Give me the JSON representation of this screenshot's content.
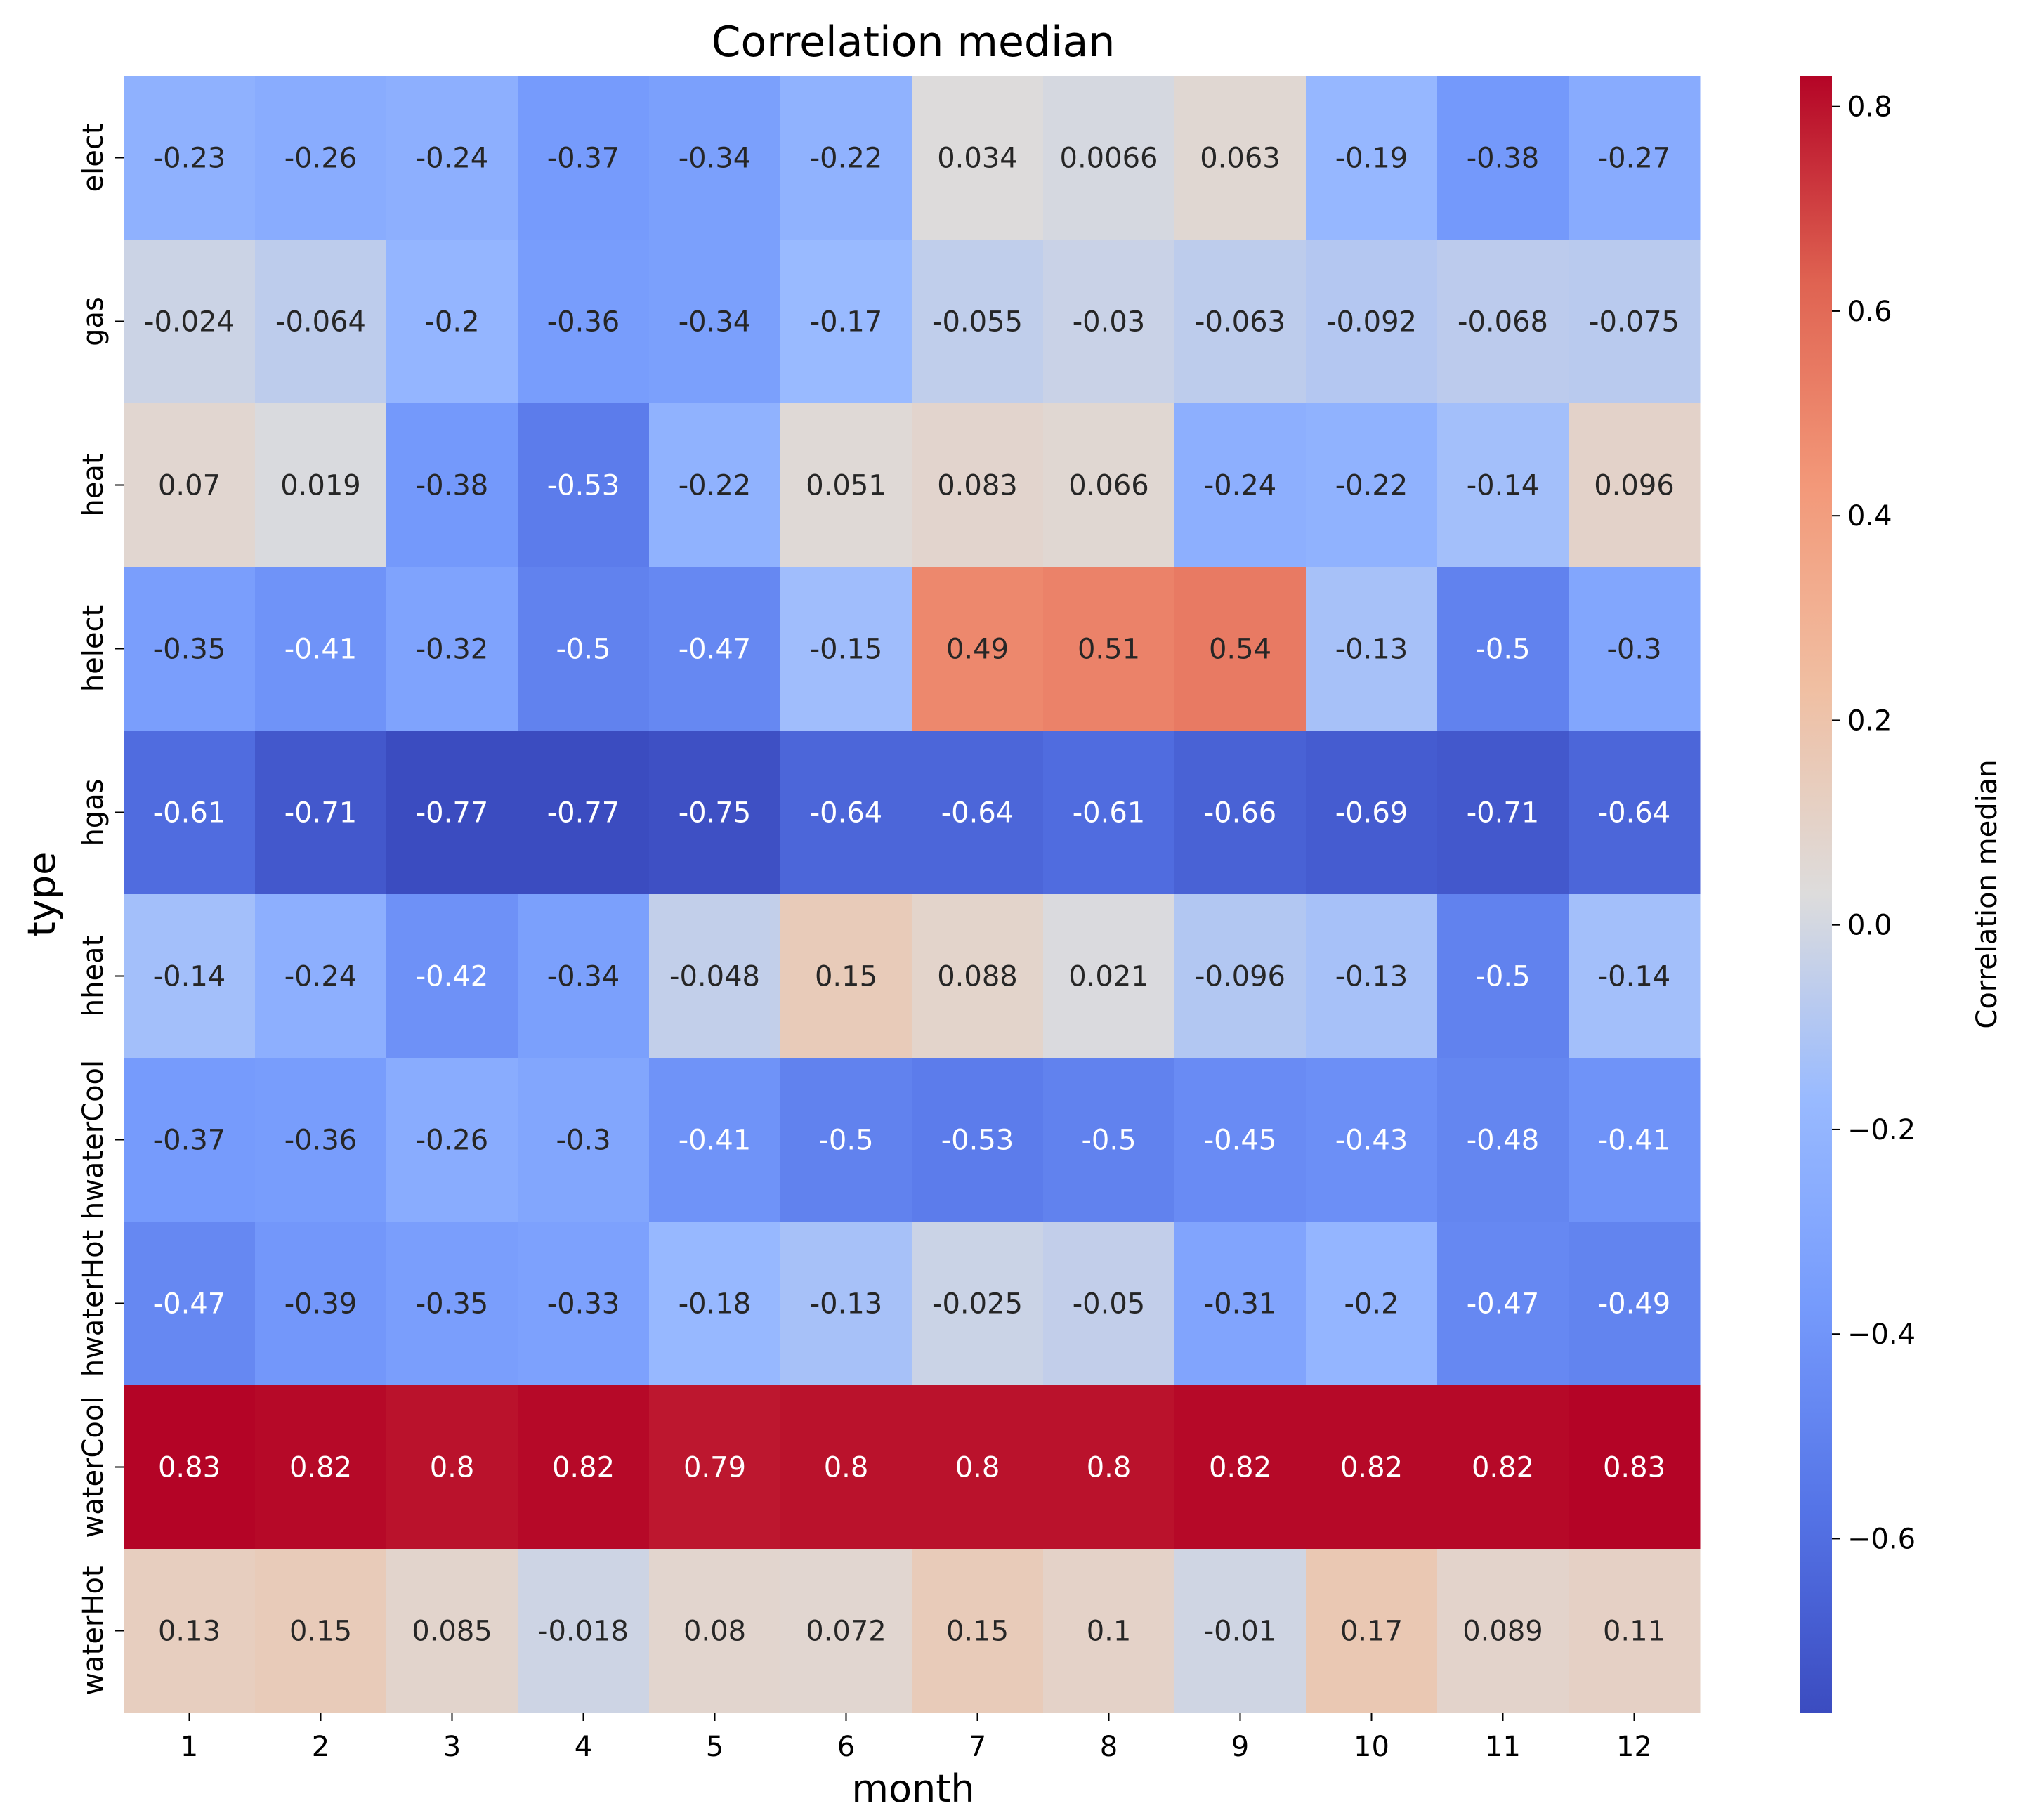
{
  "chart_data": {
    "type": "heatmap",
    "title": "Correlation median",
    "xlabel": "month",
    "ylabel": "type",
    "colorbar_label": "Correlation median",
    "colormap": "coolwarm",
    "vmin": -0.77,
    "vmax": 0.83,
    "colorbar_ticks": [
      "0.8",
      "0.6",
      "0.4",
      "0.2",
      "0.0",
      "−0.2",
      "−0.4",
      "−0.6"
    ],
    "colorbar_tick_values": [
      0.8,
      0.6,
      0.4,
      0.2,
      0.0,
      -0.2,
      -0.4,
      -0.6
    ],
    "x_categories": [
      "1",
      "2",
      "3",
      "4",
      "5",
      "6",
      "7",
      "8",
      "9",
      "10",
      "11",
      "12"
    ],
    "y_categories": [
      "elect",
      "gas",
      "heat",
      "helect",
      "hgas",
      "hheat",
      "hwaterCool",
      "hwaterHot",
      "waterCool",
      "waterHot"
    ],
    "values": [
      [
        -0.23,
        -0.26,
        -0.24,
        -0.37,
        -0.34,
        -0.22,
        0.034,
        0.0066,
        0.063,
        -0.19,
        -0.38,
        -0.27
      ],
      [
        -0.024,
        -0.064,
        -0.2,
        -0.36,
        -0.34,
        -0.17,
        -0.055,
        -0.03,
        -0.063,
        -0.092,
        -0.068,
        -0.075
      ],
      [
        0.07,
        0.019,
        -0.38,
        -0.53,
        -0.22,
        0.051,
        0.083,
        0.066,
        -0.24,
        -0.22,
        -0.14,
        0.096
      ],
      [
        -0.35,
        -0.41,
        -0.32,
        -0.5,
        -0.47,
        -0.15,
        0.49,
        0.51,
        0.54,
        -0.13,
        -0.5,
        -0.3
      ],
      [
        -0.61,
        -0.71,
        -0.77,
        -0.77,
        -0.75,
        -0.64,
        -0.64,
        -0.61,
        -0.66,
        -0.69,
        -0.71,
        -0.64
      ],
      [
        -0.14,
        -0.24,
        -0.42,
        -0.34,
        -0.048,
        0.15,
        0.088,
        0.021,
        -0.096,
        -0.13,
        -0.5,
        -0.14
      ],
      [
        -0.37,
        -0.36,
        -0.26,
        -0.3,
        -0.41,
        -0.5,
        -0.53,
        -0.5,
        -0.45,
        -0.43,
        -0.48,
        -0.41
      ],
      [
        -0.47,
        -0.39,
        -0.35,
        -0.33,
        -0.18,
        -0.13,
        -0.025,
        -0.05,
        -0.31,
        -0.2,
        -0.47,
        -0.49
      ],
      [
        0.83,
        0.82,
        0.8,
        0.82,
        0.79,
        0.8,
        0.8,
        0.8,
        0.82,
        0.82,
        0.82,
        0.83
      ],
      [
        0.13,
        0.15,
        0.085,
        -0.018,
        0.08,
        0.072,
        0.15,
        0.1,
        -0.01,
        0.17,
        0.089,
        0.11
      ]
    ],
    "cell_labels": [
      [
        "-0.23",
        "-0.26",
        "-0.24",
        "-0.37",
        "-0.34",
        "-0.22",
        "0.034",
        "0.0066",
        "0.063",
        "-0.19",
        "-0.38",
        "-0.27"
      ],
      [
        "-0.024",
        "-0.064",
        "-0.2",
        "-0.36",
        "-0.34",
        "-0.17",
        "-0.055",
        "-0.03",
        "-0.063",
        "-0.092",
        "-0.068",
        "-0.075"
      ],
      [
        "0.07",
        "0.019",
        "-0.38",
        "-0.53",
        "-0.22",
        "0.051",
        "0.083",
        "0.066",
        "-0.24",
        "-0.22",
        "-0.14",
        "0.096"
      ],
      [
        "-0.35",
        "-0.41",
        "-0.32",
        "-0.5",
        "-0.47",
        "-0.15",
        "0.49",
        "0.51",
        "0.54",
        "-0.13",
        "-0.5",
        "-0.3"
      ],
      [
        "-0.61",
        "-0.71",
        "-0.77",
        "-0.77",
        "-0.75",
        "-0.64",
        "-0.64",
        "-0.61",
        "-0.66",
        "-0.69",
        "-0.71",
        "-0.64"
      ],
      [
        "-0.14",
        "-0.24",
        "-0.42",
        "-0.34",
        "-0.048",
        "0.15",
        "0.088",
        "0.021",
        "-0.096",
        "-0.13",
        "-0.5",
        "-0.14"
      ],
      [
        "-0.37",
        "-0.36",
        "-0.26",
        "-0.3",
        "-0.41",
        "-0.5",
        "-0.53",
        "-0.5",
        "-0.45",
        "-0.43",
        "-0.48",
        "-0.41"
      ],
      [
        "-0.47",
        "-0.39",
        "-0.35",
        "-0.33",
        "-0.18",
        "-0.13",
        "-0.025",
        "-0.05",
        "-0.31",
        "-0.2",
        "-0.47",
        "-0.49"
      ],
      [
        "0.83",
        "0.82",
        "0.8",
        "0.82",
        "0.79",
        "0.8",
        "0.8",
        "0.8",
        "0.82",
        "0.82",
        "0.82",
        "0.83"
      ],
      [
        "0.13",
        "0.15",
        "0.085",
        "-0.018",
        "0.08",
        "0.072",
        "0.15",
        "0.1",
        "-0.01",
        "0.17",
        "0.089",
        "0.11"
      ]
    ],
    "grid": false,
    "legend": "colorbar-right"
  }
}
